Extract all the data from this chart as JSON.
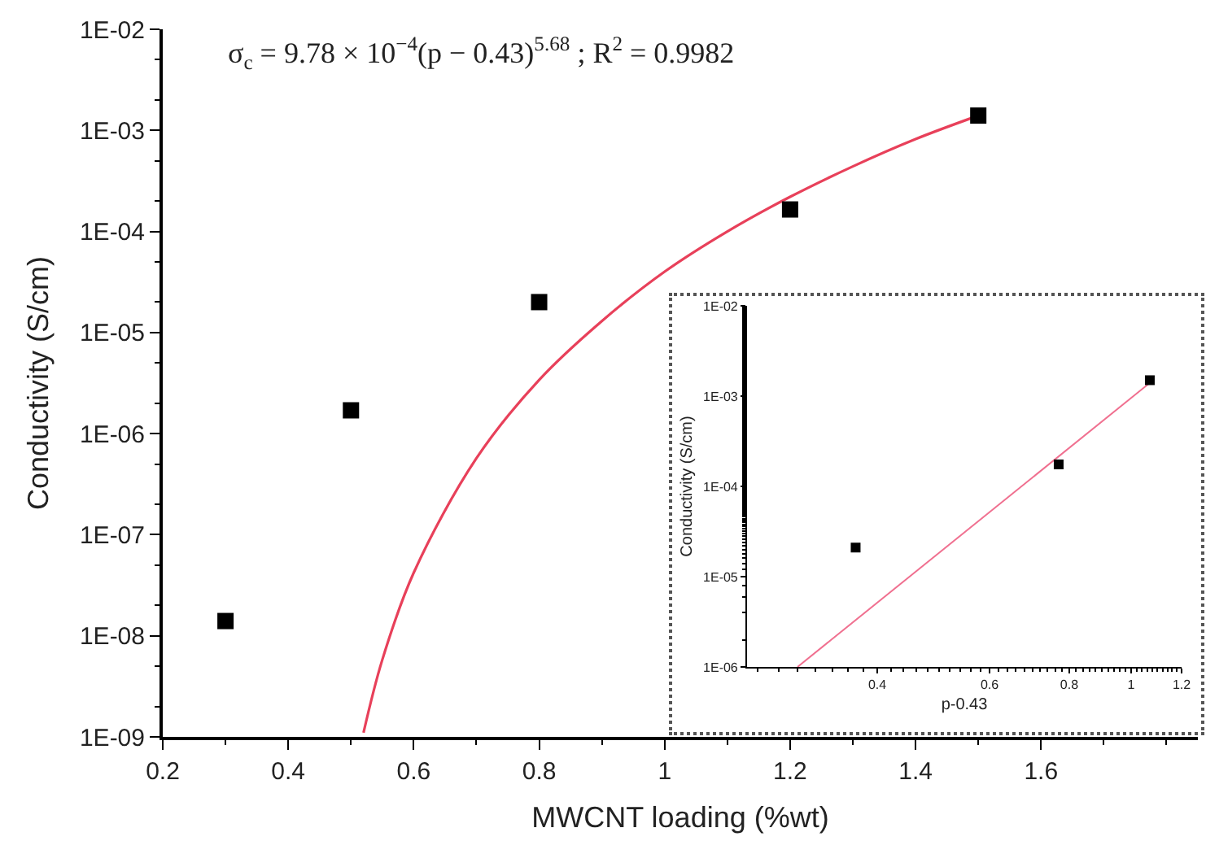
{
  "chart_data": [
    {
      "type": "scatter",
      "xlabel": "MWCNT loading (%wt)",
      "ylabel": "Conductivity (S/cm)",
      "log": "y",
      "annotations": [
        "σ$_{c}$ = 9.78 × 10$^{−4}$(p − 0.43)$^{5.68}$ ; R$^{2}$ = 0.9982"
      ],
      "series": [
        {
          "color": "#000000",
          "marker": "square",
          "x": [
            0.3,
            0.5,
            0.8,
            1.2,
            1.5
          ],
          "values": [
            1.4e-08,
            1.7e-06,
            2e-05,
            0.000165,
            0.0014
          ]
        },
        {
          "type": "line",
          "marker": "none",
          "color": "#e8405a",
          "x": [
            0.52,
            0.55,
            0.6,
            0.7,
            0.8,
            0.9,
            1.0,
            1.1,
            1.2,
            1.3,
            1.4,
            1.5
          ],
          "values": [
            1.1e-09,
            5.8e-09,
            4.2e-08,
            5.7e-07,
            3.4e-06,
            1.3e-05,
            4e-05,
            0.0001,
            0.00022,
            0.00044,
            0.00082,
            0.0014
          ]
        }
      ],
      "xlim": [
        0.2,
        1.85
      ],
      "xticks": [
        0.2,
        0.4,
        0.6,
        0.8,
        1.0,
        1.2,
        1.4,
        1.6
      ],
      "ylim": [
        1e-09,
        0.01
      ],
      "yticks": [
        {
          "value": 1e-09,
          "label": "1E-09"
        },
        {
          "value": 1e-08,
          "label": "1E-08"
        },
        {
          "value": 1e-07,
          "label": "1E-07"
        },
        {
          "value": 1e-06,
          "label": "1E-06"
        },
        {
          "value": 1e-05,
          "label": "1E-05"
        },
        {
          "value": 0.0001,
          "label": "1E-04"
        },
        {
          "value": 0.001,
          "label": "1E-03"
        },
        {
          "value": 0.01,
          "label": "1E-02"
        }
      ]
    },
    {
      "type": "scatter",
      "xlabel": "p-0.43",
      "ylabel": "Conductivity (S/cm)",
      "log": "xy",
      "series": [
        {
          "color": "#000000",
          "marker": "square",
          "x": [
            0.37,
            0.77,
            1.07
          ],
          "values": [
            2.1e-05,
            0.000175,
            0.0015
          ]
        },
        {
          "type": "line",
          "marker": "none",
          "color": "#f07090",
          "x": [
            0.3,
            1.07
          ],
          "values": [
            1e-06,
            0.0014
          ]
        }
      ],
      "xlim": [
        0.25,
        1.2
      ],
      "xticks": [
        0.4,
        0.6,
        0.8,
        1,
        1.2
      ],
      "ylim": [
        1e-06,
        0.01
      ],
      "yticks": [
        {
          "value": 1e-06,
          "label": "1E-06"
        },
        {
          "value": 1e-05,
          "label": "1E-05"
        },
        {
          "value": 0.0001,
          "label": "1E-04"
        },
        {
          "value": 0.001,
          "label": "1E-03"
        },
        {
          "value": 0.01,
          "label": "1E-02"
        }
      ]
    }
  ]
}
